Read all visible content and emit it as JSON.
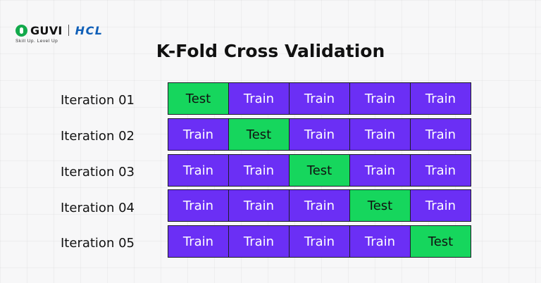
{
  "brand": {
    "name": "GUVI",
    "partner": "HCL",
    "tagline": "Skill Up. Level Up",
    "colors": {
      "guvi_green": "#12a94b",
      "hcl_blue": "#0f5fb8"
    }
  },
  "title": "K-Fold Cross Validation",
  "colors": {
    "train": "#6b2ff5",
    "test": "#16d65d"
  },
  "iterations": [
    {
      "label": "Iteration 01",
      "folds": [
        "Test",
        "Train",
        "Train",
        "Train",
        "Train"
      ]
    },
    {
      "label": "Iteration 02",
      "folds": [
        "Train",
        "Test",
        "Train",
        "Train",
        "Train"
      ]
    },
    {
      "label": "Iteration 03",
      "folds": [
        "Train",
        "Train",
        "Test",
        "Train",
        "Train"
      ]
    },
    {
      "label": "Iteration 04",
      "folds": [
        "Train",
        "Train",
        "Train",
        "Test",
        "Train"
      ]
    },
    {
      "label": "Iteration 05",
      "folds": [
        "Train",
        "Train",
        "Train",
        "Train",
        "Test"
      ]
    }
  ]
}
